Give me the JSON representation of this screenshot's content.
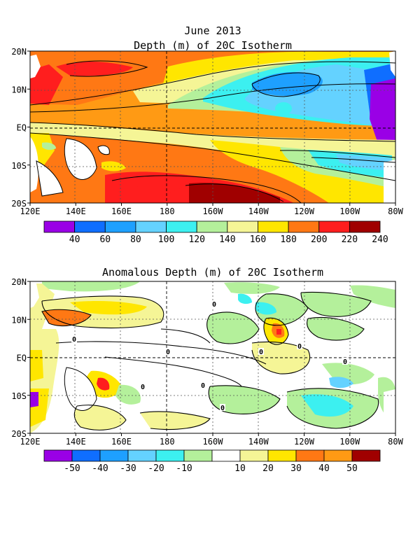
{
  "top_panel": {
    "title_line1": "June 2013",
    "title_line2": "Depth (m) of 20C Isotherm",
    "lat_labels": [
      "20N",
      "10N",
      "EQ",
      "10S",
      "20S"
    ],
    "lon_labels": [
      "120E",
      "140E",
      "160E",
      "180",
      "160W",
      "140W",
      "120W",
      "100W",
      "80W"
    ],
    "colorbar": {
      "colors": [
        "#9a00e6",
        "#0f6eff",
        "#1ea0ff",
        "#64d2ff",
        "#3cf0f0",
        "#b4f09b",
        "#f5f596",
        "#ffe600",
        "#ff7814",
        "#ff1e1e",
        "#a00000"
      ],
      "labels": [
        "40",
        "60",
        "80",
        "100",
        "120",
        "140",
        "160",
        "180",
        "200",
        "220",
        "240"
      ]
    }
  },
  "bottom_panel": {
    "title": "Anomalous Depth (m) of 20C Isotherm",
    "lat_labels": [
      "20N",
      "10N",
      "EQ",
      "10S",
      "20S"
    ],
    "lon_labels": [
      "120E",
      "140E",
      "160E",
      "180",
      "160W",
      "140W",
      "120W",
      "100W",
      "80W"
    ],
    "colorbar": {
      "colors": [
        "#9a00e6",
        "#0f6eff",
        "#1ea0ff",
        "#64d2ff",
        "#3cf0f0",
        "#b4f09b",
        "#ffffff",
        "#f5f596",
        "#ffe600",
        "#ff7814",
        "#ff9a14",
        "#a00000"
      ],
      "labels": [
        "-50",
        "-40",
        "-30",
        "-20",
        "-10",
        "10",
        "20",
        "30",
        "40",
        "50"
      ]
    },
    "contour_labels": [
      "0",
      "0",
      "0",
      "0",
      "0",
      "0",
      "0",
      "0",
      "0"
    ]
  }
}
